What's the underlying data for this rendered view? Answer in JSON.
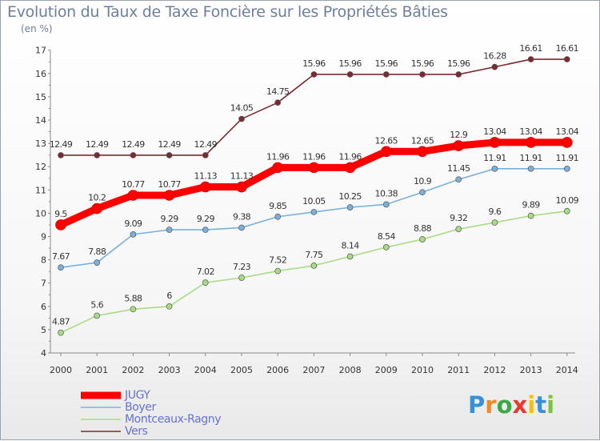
{
  "title": "Evolution du Taux de Taxe Foncière sur les Propriétés Bâties",
  "unit": "(en %)",
  "logo": {
    "text": "Proxiti",
    "letters": [
      "P",
      "r",
      "o",
      "x",
      "i",
      "t",
      "i"
    ],
    "colors": [
      "#3b8fd6",
      "#f28a1f",
      "#3aa845",
      "#e8392e",
      "#f2c018",
      "#3b8fd6",
      "#7cc242"
    ]
  },
  "chart_data": {
    "type": "line",
    "title": "Evolution du Taux de Taxe Foncière sur les Propriétés Bâties",
    "ylabel": "(en %)",
    "xlabel": "",
    "x": [
      "2000",
      "2001",
      "2002",
      "2003",
      "2004",
      "2005",
      "2006",
      "2007",
      "2008",
      "2009",
      "2010",
      "2011",
      "2012",
      "2013",
      "2014"
    ],
    "ylim": [
      4,
      17
    ],
    "yticks": [
      "4",
      "5",
      "6",
      "7",
      "8",
      "9",
      "10",
      "11",
      "12",
      "13",
      "14",
      "15",
      "16",
      "17"
    ],
    "grid": false,
    "legend_position": "bottom-left",
    "series": [
      {
        "name": "Vers",
        "color": "#7a2a30",
        "values": [
          12.49,
          12.49,
          12.49,
          12.49,
          12.49,
          14.05,
          14.75,
          15.96,
          15.96,
          15.96,
          15.96,
          15.96,
          16.28,
          16.61,
          16.61
        ],
        "labels": [
          "12.49",
          "12.49",
          "12.49",
          "12.49",
          "12.49",
          "14.05",
          "14.75",
          "15.96",
          "15.96",
          "15.96",
          "15.96",
          "15.96",
          "16.28",
          "16.61",
          "16.61"
        ]
      },
      {
        "name": "Montceaux-Ragny",
        "color": "#a8dc84",
        "values": [
          4.87,
          5.6,
          5.88,
          6,
          7.02,
          7.23,
          7.52,
          7.75,
          8.14,
          8.54,
          8.88,
          9.32,
          9.6,
          9.89,
          10.09
        ],
        "labels": [
          "4.87",
          "5.6",
          "5.88",
          "6",
          "7.02",
          "7.23",
          "7.52",
          "7.75",
          "8.14",
          "8.54",
          "8.88",
          "9.32",
          "9.6",
          "9.89",
          "10.09"
        ]
      },
      {
        "name": "Boyer",
        "color": "#7ab0dc",
        "values": [
          7.67,
          7.88,
          9.09,
          9.29,
          9.29,
          9.38,
          9.85,
          10.05,
          10.25,
          10.38,
          10.9,
          11.45,
          11.91,
          11.91,
          11.91
        ],
        "labels": [
          "7.67",
          "7.88",
          "9.09",
          "9.29",
          "9.29",
          "9.38",
          "9.85",
          "10.05",
          "10.25",
          "10.38",
          "10.9",
          "11.45",
          "11.91",
          "11.91",
          "11.91"
        ]
      },
      {
        "name": "JUGY",
        "color": "#ff0000",
        "values": [
          9.5,
          10.2,
          10.77,
          10.77,
          11.13,
          11.13,
          11.96,
          11.96,
          11.96,
          12.65,
          12.65,
          12.9,
          13.04,
          13.04,
          13.04
        ],
        "labels": [
          "9.5",
          "10.2",
          "10.77",
          "10.77",
          "11.13",
          "11.13",
          "11.96",
          "11.96",
          "11.96",
          "12.65",
          "12.65",
          "12.9",
          "13.04",
          "13.04",
          "13.04"
        ]
      }
    ],
    "legend": [
      {
        "name": "JUGY",
        "color": "#ff0000"
      },
      {
        "name": "Boyer",
        "color": "#7ab0dc"
      },
      {
        "name": "Montceaux-Ragny",
        "color": "#a8dc84"
      },
      {
        "name": "Vers",
        "color": "#7a2a30"
      }
    ]
  }
}
